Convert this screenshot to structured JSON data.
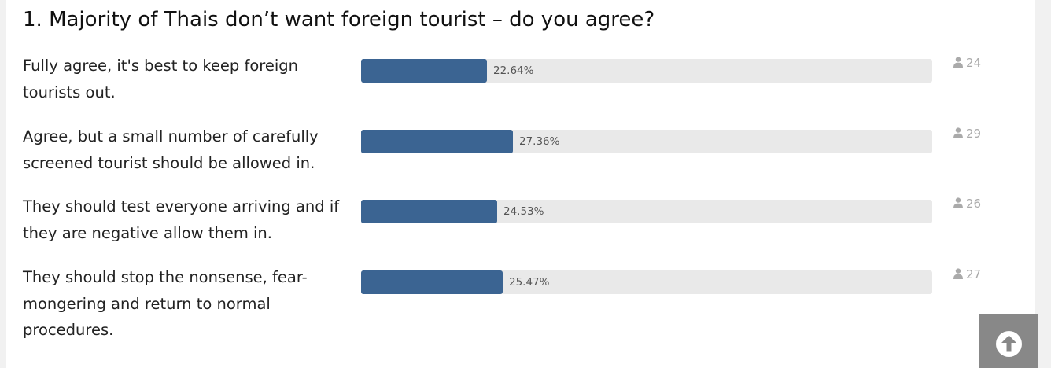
{
  "poll": {
    "title": "1. Majority of Thais don’t want foreign tourist – do you agree?",
    "options": [
      {
        "label": "Fully agree, it's best to keep foreign tourists out.",
        "percent_label": "22.64%",
        "percent": 22.64,
        "votes": "24"
      },
      {
        "label": "Agree, but a small number of carefully screened tourist should be allowed in.",
        "percent_label": "27.36%",
        "percent": 27.36,
        "votes": "29"
      },
      {
        "label": "They should test everyone arriving and if they are negative allow them in.",
        "percent_label": "24.53%",
        "percent": 24.53,
        "votes": "26"
      },
      {
        "label": "They should stop the nonsense, fear-mongering and return to normal procedures.",
        "percent_label": "25.47%",
        "percent": 25.47,
        "votes": "27"
      }
    ]
  },
  "colors": {
    "bar_fill": "#3b6492",
    "bar_track": "#e9e9e9",
    "vote_count": "#aaaaaa",
    "scroll_button": "#888888"
  },
  "icons": {
    "vote": "user-icon",
    "scroll_top": "arrow-up-circle-icon"
  }
}
